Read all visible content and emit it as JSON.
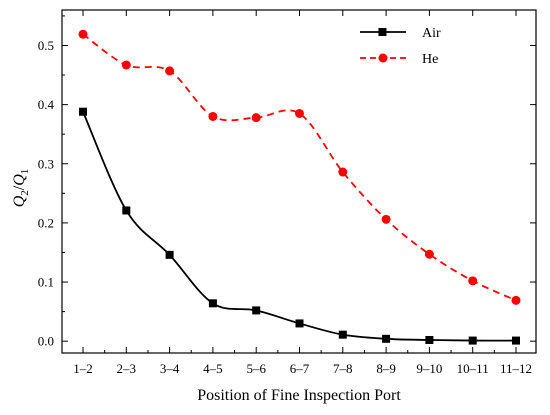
{
  "chart_data": {
    "type": "line",
    "title": "",
    "xlabel": "Position of Fine Inspection Port",
    "ylabel": "Q2/Q1",
    "ylabel_parts": {
      "q_top": "Q",
      "sub_top": "2",
      "slash": "/",
      "q_bottom": "Q",
      "sub_bottom": "1"
    },
    "categories": [
      "1–2",
      "2–3",
      "3–4",
      "4–5",
      "5–6",
      "6–7",
      "7–8",
      "8–9",
      "9–10",
      "10–11",
      "11–12"
    ],
    "ylim": [
      -0.02,
      0.56
    ],
    "yticks": [
      0.0,
      0.1,
      0.2,
      0.3,
      0.4,
      0.5
    ],
    "ytick_labels": [
      "0.0",
      "0.1",
      "0.2",
      "0.3",
      "0.4",
      "0.5"
    ],
    "grid": false,
    "legend_position": "top-right",
    "series": [
      {
        "name": "Air",
        "color": "#000000",
        "marker": "square",
        "line_style": "solid",
        "values": [
          0.388,
          0.221,
          0.146,
          0.064,
          0.052,
          0.03,
          0.011,
          0.004,
          0.002,
          0.001,
          0.001
        ]
      },
      {
        "name": "He",
        "color": "#ff0000",
        "marker": "circle",
        "line_style": "dashed",
        "values": [
          0.519,
          0.467,
          0.457,
          0.38,
          0.378,
          0.385,
          0.286,
          0.206,
          0.147,
          0.102,
          0.069
        ]
      }
    ]
  }
}
